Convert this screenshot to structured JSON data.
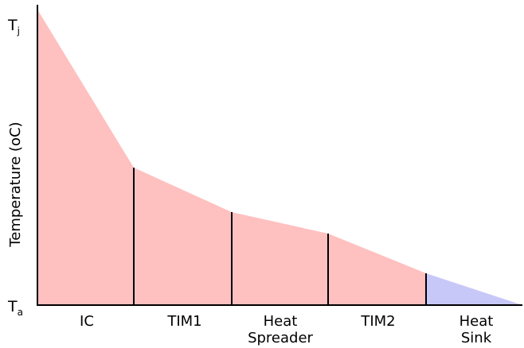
{
  "diagram": {
    "y_axis_label": "Temperature (oC)",
    "top_label": {
      "main": "T",
      "sub": "j"
    },
    "bottom_label": {
      "main": "T",
      "sub": "a"
    },
    "layers": [
      {
        "lines": [
          "IC"
        ],
        "fill": "#ffc0c0"
      },
      {
        "lines": [
          "TIM1"
        ],
        "fill": "#ffc0c0"
      },
      {
        "lines": [
          "Heat",
          "Spreader"
        ],
        "fill": "#ffc0c0"
      },
      {
        "lines": [
          "TIM2"
        ],
        "fill": "#ffc0c0"
      },
      {
        "lines": [
          "Heat",
          "Sink"
        ],
        "fill": "#c8c8f8"
      }
    ],
    "colors": {
      "axis": "#000000",
      "divider": "#000000"
    }
  }
}
